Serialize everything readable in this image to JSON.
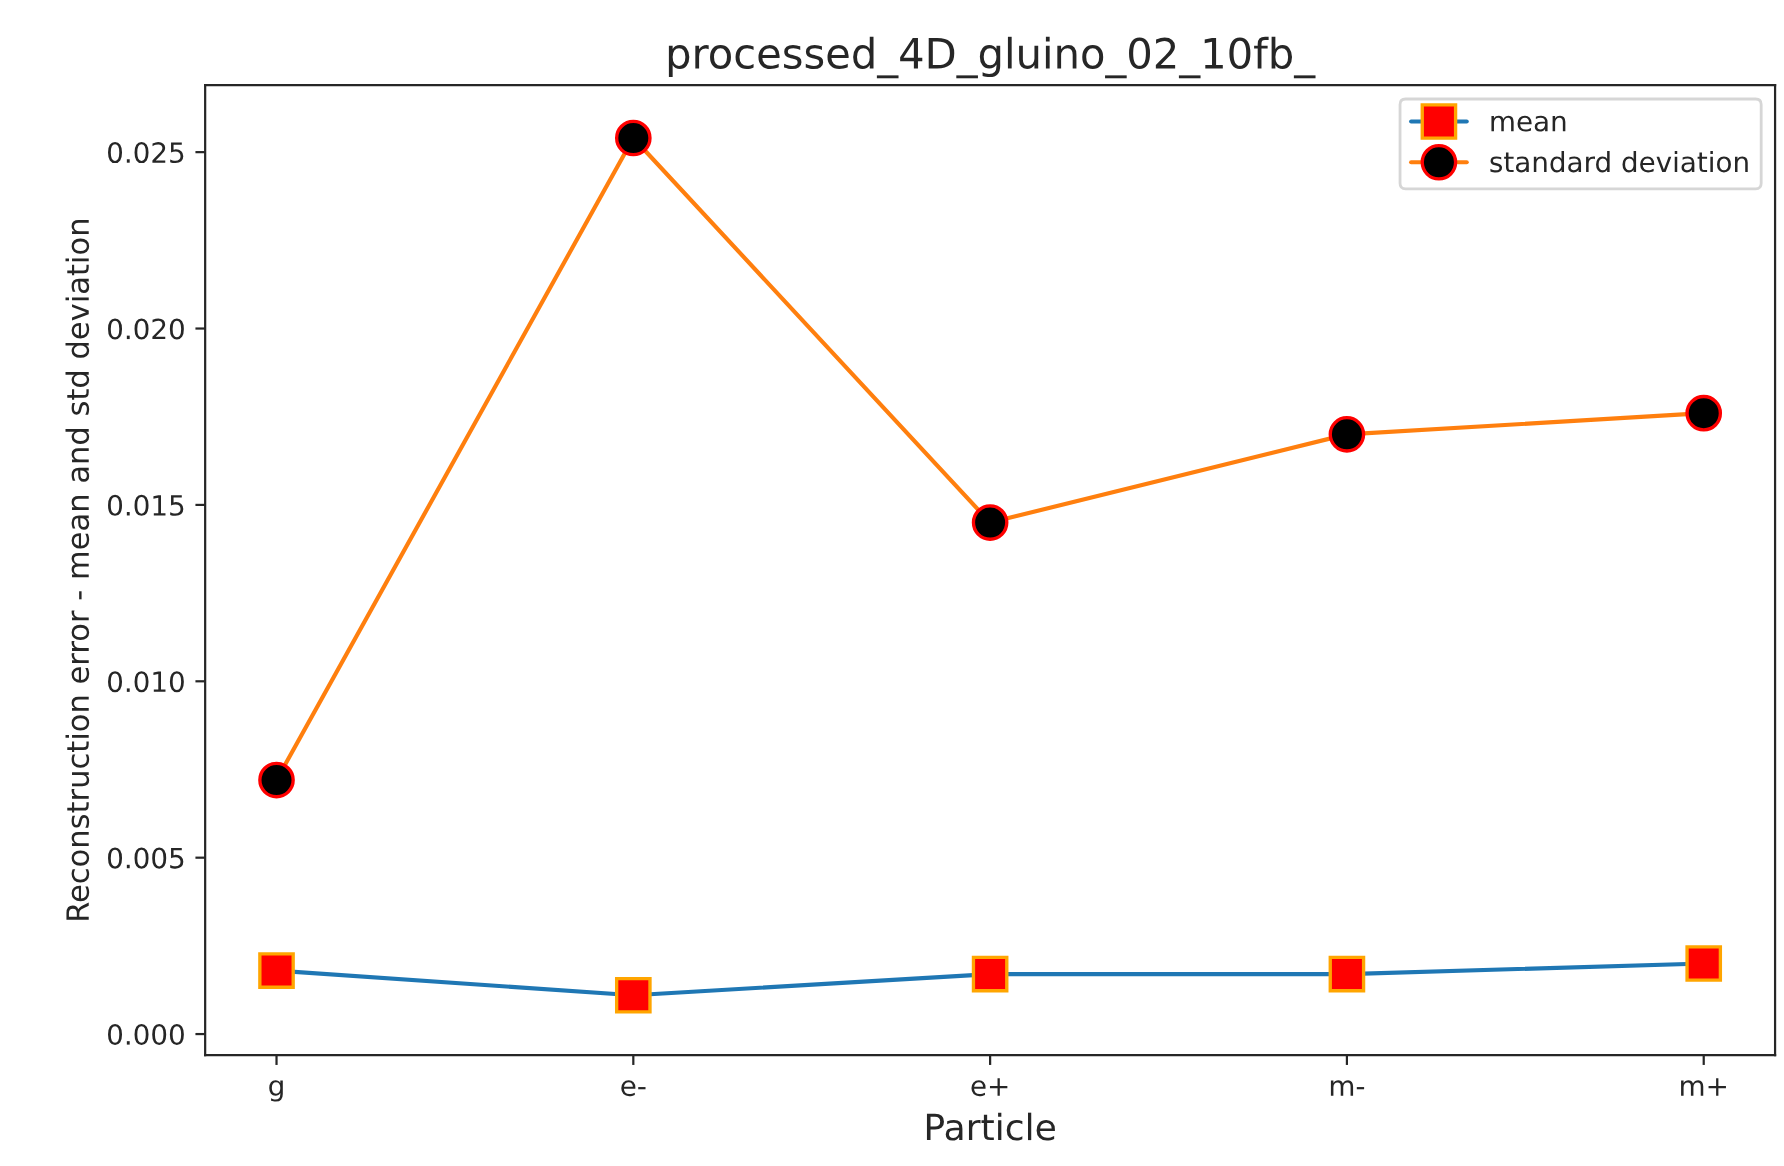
{
  "chart_data": {
    "type": "line",
    "title": "processed_4D_gluino_02_10fb_",
    "xlabel": "Particle",
    "ylabel": "Reconstruction error - mean and std deviation",
    "categories": [
      "g",
      "e-",
      "e+",
      "m-",
      "m+"
    ],
    "series": [
      {
        "name": "mean",
        "color": "#1f77b4",
        "values": [
          0.0018,
          0.0011,
          0.0017,
          0.0017,
          0.002
        ],
        "marker": "square"
      },
      {
        "name": "standard deviation",
        "color": "#ff7f0e",
        "values": [
          0.0072,
          0.0254,
          0.0145,
          0.017,
          0.0176
        ],
        "marker": "circle"
      }
    ],
    "ylim": [
      -0.0006,
      0.0269
    ],
    "yticks": [
      {
        "value": 0,
        "label": "0.000"
      },
      {
        "value": 0.005,
        "label": "0.005"
      },
      {
        "value": 0.01,
        "label": "0.010"
      },
      {
        "value": 0.015,
        "label": "0.015"
      },
      {
        "value": 0.02,
        "label": "0.020"
      },
      {
        "value": 0.025,
        "label": "0.025"
      }
    ],
    "grid": false,
    "legend": "top right"
  }
}
